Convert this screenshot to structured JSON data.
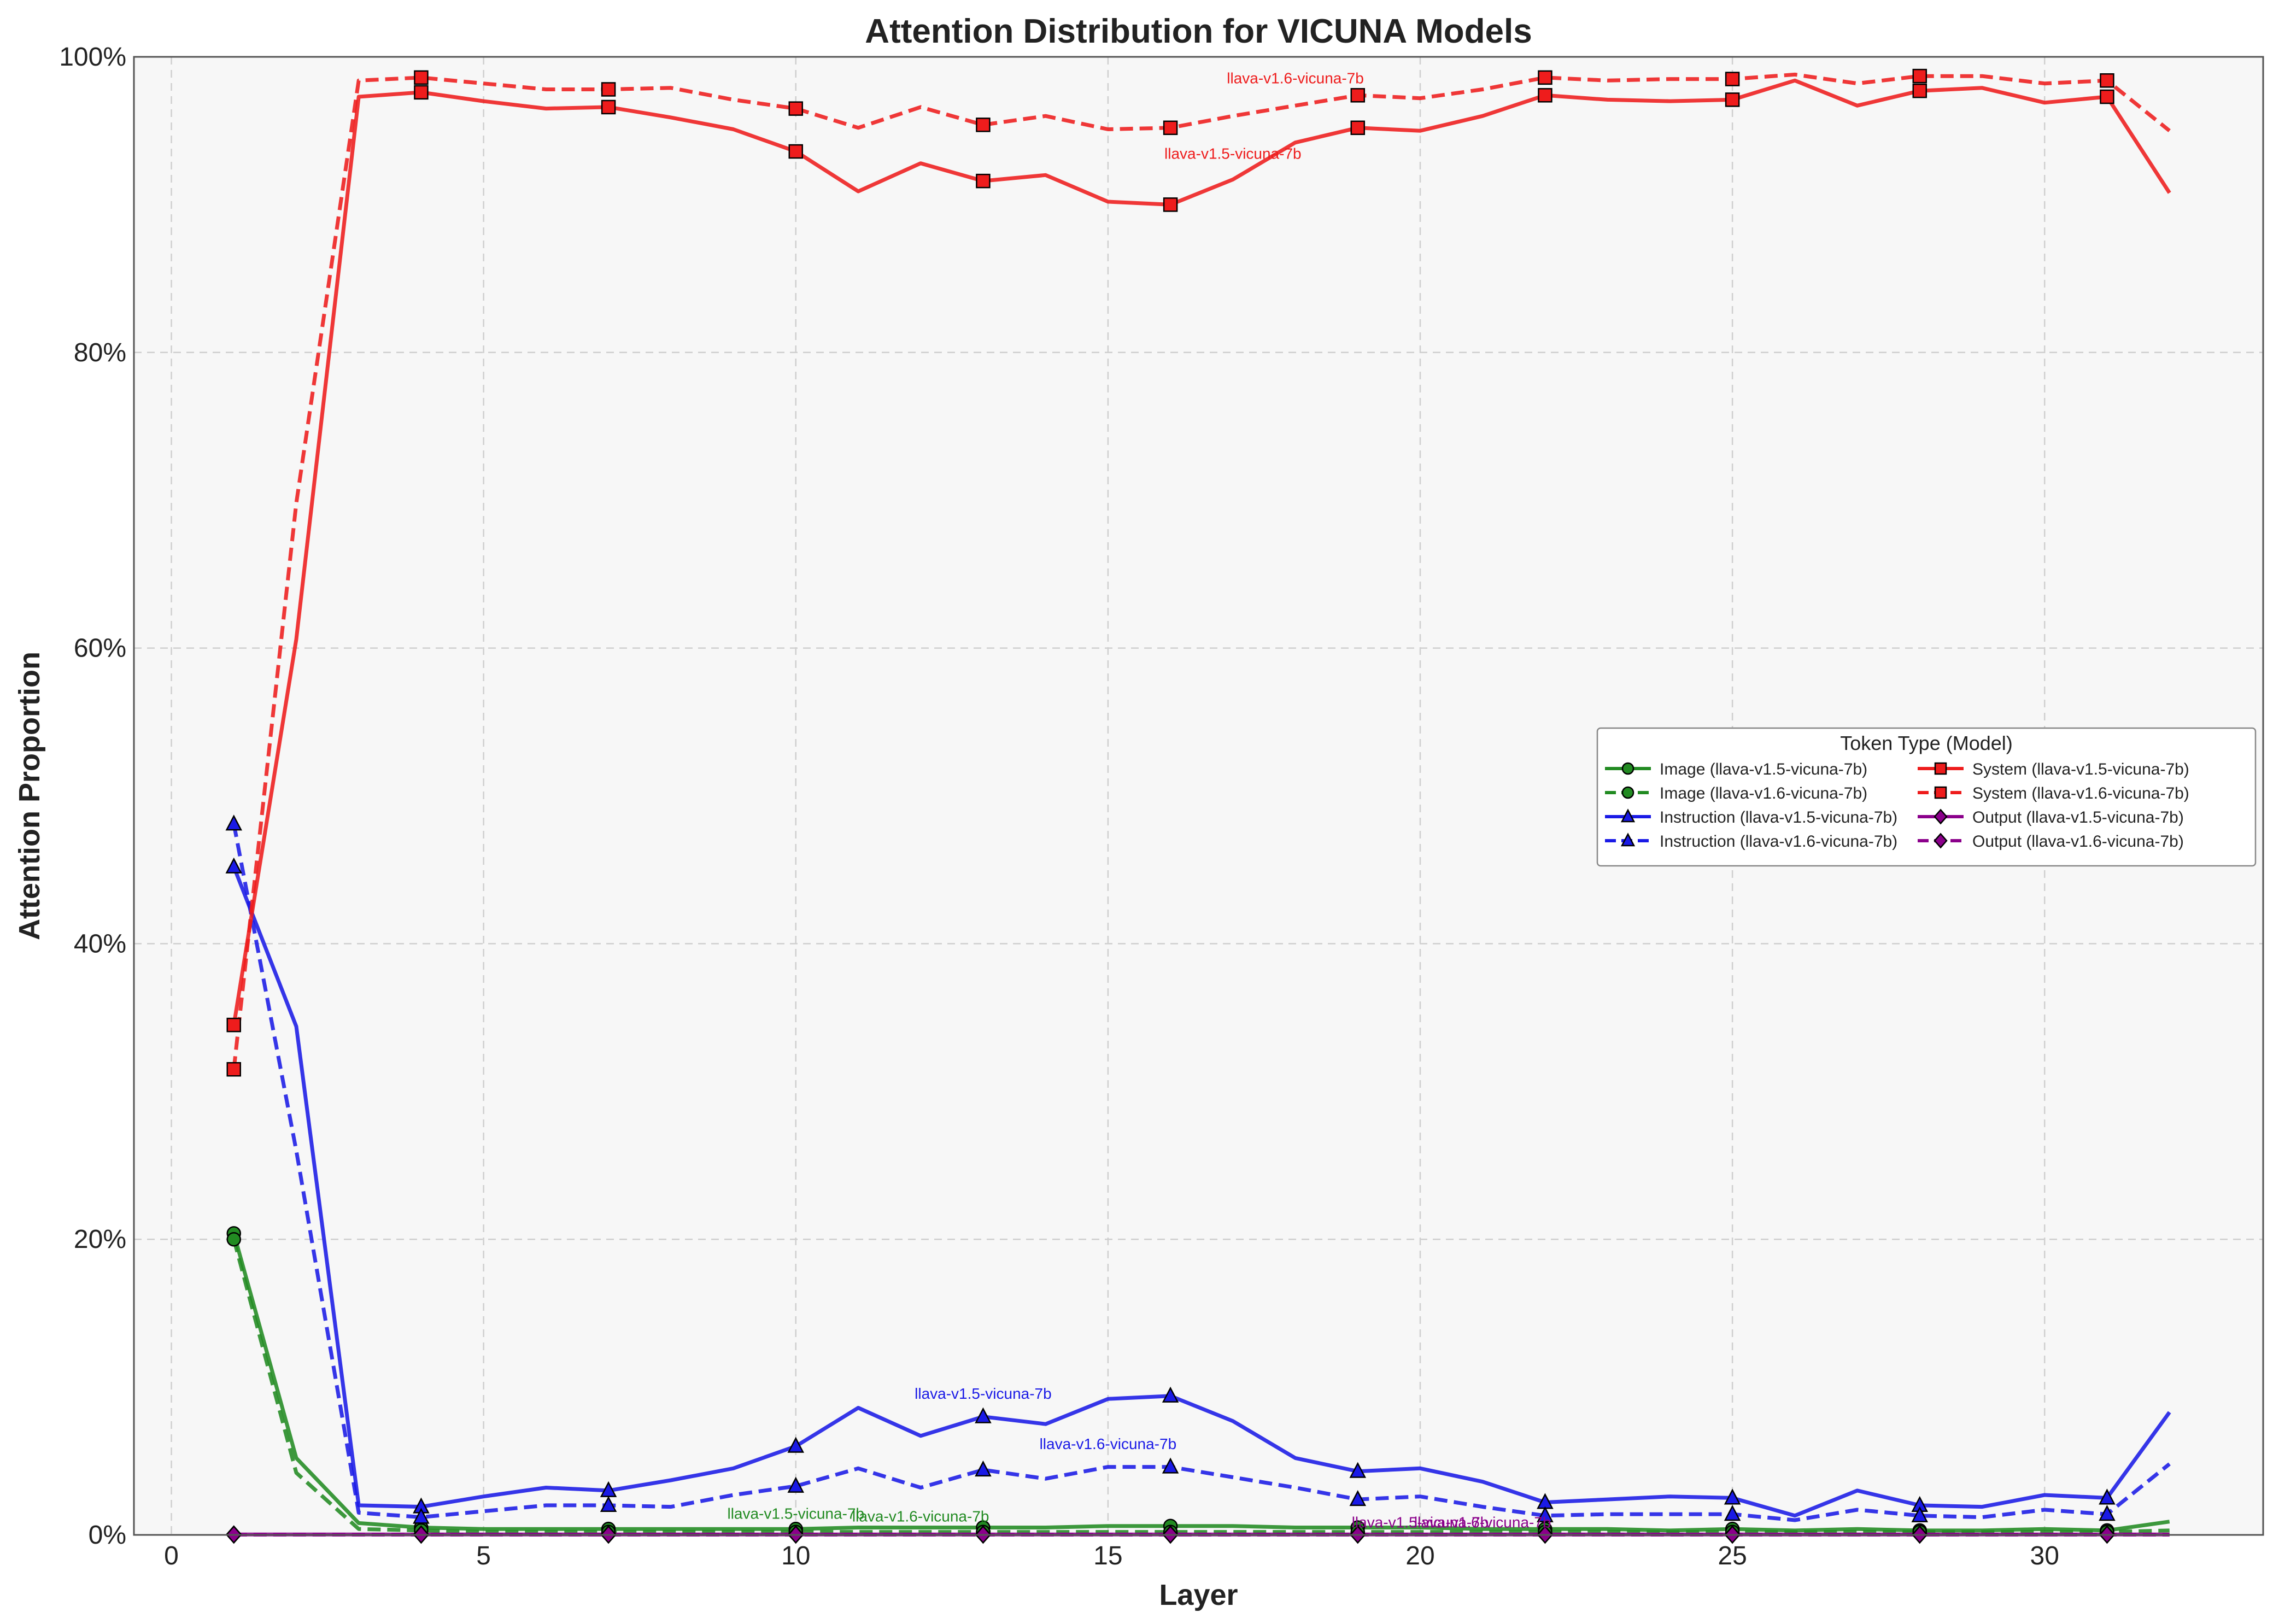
{
  "chart_data": {
    "type": "line",
    "title": "Attention Distribution for VICUNA Models",
    "xlabel": "Layer",
    "ylabel": "Attention Proportion",
    "xlim": [
      -0.6,
      33.5
    ],
    "ylim": [
      0,
      1
    ],
    "xticks": [
      0,
      5,
      10,
      15,
      20,
      25,
      30
    ],
    "xtick_labels": [
      "0",
      "5",
      "10",
      "15",
      "20",
      "25",
      "30"
    ],
    "yticks": [
      0,
      0.2,
      0.4,
      0.6,
      0.8,
      1.0
    ],
    "ytick_labels": [
      "0%",
      "20%",
      "40%",
      "60%",
      "80%",
      "100%"
    ],
    "grid": true,
    "legend": {
      "title": "Token Type (Model)",
      "placement": "center-right",
      "columns": 2
    },
    "x": [
      1,
      2,
      3,
      4,
      5,
      6,
      7,
      8,
      9,
      10,
      11,
      12,
      13,
      14,
      15,
      16,
      17,
      18,
      19,
      20,
      21,
      22,
      23,
      24,
      25,
      26,
      27,
      28,
      29,
      30,
      31,
      32
    ],
    "marker_x": [
      1,
      4,
      7,
      10,
      13,
      16,
      19,
      22,
      25,
      28,
      31
    ],
    "series": [
      {
        "name": "Image (llava-v1.5-vicuna-7b)",
        "color": "#228b22",
        "dash": "solid",
        "marker": "circle",
        "values": [
          0.204,
          0.052,
          0.008,
          0.005,
          0.004,
          0.004,
          0.004,
          0.004,
          0.004,
          0.004,
          0.005,
          0.005,
          0.005,
          0.005,
          0.006,
          0.006,
          0.006,
          0.005,
          0.005,
          0.005,
          0.004,
          0.004,
          0.004,
          0.003,
          0.004,
          0.003,
          0.004,
          0.003,
          0.003,
          0.004,
          0.003,
          0.009
        ]
      },
      {
        "name": "Image (llava-v1.6-vicuna-7b)",
        "color": "#228b22",
        "dash": "dashed",
        "marker": "circle",
        "values": [
          0.2,
          0.042,
          0.004,
          0.003,
          0.002,
          0.002,
          0.002,
          0.002,
          0.002,
          0.002,
          0.002,
          0.002,
          0.002,
          0.002,
          0.002,
          0.002,
          0.002,
          0.002,
          0.002,
          0.002,
          0.002,
          0.002,
          0.002,
          0.002,
          0.002,
          0.002,
          0.002,
          0.002,
          0.002,
          0.002,
          0.002,
          0.003
        ]
      },
      {
        "name": "Instruction (llava-v1.5-vicuna-7b)",
        "color": "#1a1ae6",
        "dash": "solid",
        "marker": "triangle",
        "values": [
          0.452,
          0.344,
          0.02,
          0.019,
          0.026,
          0.032,
          0.03,
          0.037,
          0.045,
          0.06,
          0.086,
          0.067,
          0.08,
          0.075,
          0.092,
          0.094,
          0.077,
          0.052,
          0.043,
          0.045,
          0.036,
          0.022,
          0.024,
          0.026,
          0.025,
          0.013,
          0.03,
          0.02,
          0.019,
          0.027,
          0.025,
          0.083
        ]
      },
      {
        "name": "Instruction (llava-v1.6-vicuna-7b)",
        "color": "#1a1ae6",
        "dash": "dashed",
        "marker": "triangle",
        "values": [
          0.481,
          0.26,
          0.015,
          0.012,
          0.016,
          0.02,
          0.02,
          0.019,
          0.027,
          0.033,
          0.045,
          0.032,
          0.044,
          0.038,
          0.046,
          0.046,
          0.039,
          0.032,
          0.024,
          0.026,
          0.019,
          0.013,
          0.014,
          0.014,
          0.014,
          0.01,
          0.017,
          0.013,
          0.012,
          0.017,
          0.014,
          0.048
        ]
      },
      {
        "name": "System (llava-v1.5-vicuna-7b)",
        "color": "#ee1c1c",
        "dash": "solid",
        "marker": "square",
        "values": [
          0.345,
          0.606,
          0.973,
          0.976,
          0.97,
          0.965,
          0.966,
          0.959,
          0.951,
          0.936,
          0.909,
          0.928,
          0.916,
          0.92,
          0.902,
          0.9,
          0.917,
          0.942,
          0.952,
          0.95,
          0.96,
          0.974,
          0.971,
          0.97,
          0.971,
          0.984,
          0.967,
          0.977,
          0.979,
          0.969,
          0.973,
          0.908
        ]
      },
      {
        "name": "System (llava-v1.6-vicuna-7b)",
        "color": "#ee1c1c",
        "dash": "dashed",
        "marker": "square",
        "values": [
          0.315,
          0.698,
          0.984,
          0.986,
          0.982,
          0.978,
          0.978,
          0.979,
          0.971,
          0.965,
          0.952,
          0.966,
          0.954,
          0.96,
          0.951,
          0.952,
          0.96,
          0.967,
          0.974,
          0.972,
          0.978,
          0.986,
          0.984,
          0.985,
          0.985,
          0.988,
          0.982,
          0.987,
          0.987,
          0.982,
          0.984,
          0.95
        ]
      },
      {
        "name": "Output (llava-v1.5-vicuna-7b)",
        "color": "#8b008b",
        "dash": "solid",
        "marker": "diamond",
        "values": [
          0.0003,
          0.0003,
          0.0003,
          0.0003,
          0.0003,
          0.0003,
          0.0003,
          0.0003,
          0.0003,
          0.0003,
          0.0003,
          0.0003,
          0.0003,
          0.0003,
          0.0003,
          0.0003,
          0.0003,
          0.0003,
          0.0003,
          0.0003,
          0.0003,
          0.0003,
          0.0003,
          0.0003,
          0.0003,
          0.0003,
          0.0003,
          0.0003,
          0.0003,
          0.0003,
          0.0003,
          0.0003
        ]
      },
      {
        "name": "Output (llava-v1.6-vicuna-7b)",
        "color": "#8b008b",
        "dash": "dashed",
        "marker": "diamond",
        "values": [
          0.0002,
          0.0002,
          0.0002,
          0.0002,
          0.0002,
          0.0002,
          0.0002,
          0.0002,
          0.0002,
          0.0002,
          0.0002,
          0.0002,
          0.0002,
          0.0002,
          0.0002,
          0.0002,
          0.0002,
          0.0002,
          0.0002,
          0.0002,
          0.0002,
          0.0002,
          0.0002,
          0.0002,
          0.0002,
          0.0002,
          0.0002,
          0.0002,
          0.0002,
          0.0002,
          0.0002,
          0.0002
        ]
      }
    ],
    "annotations": [
      {
        "text": "llava-v1.6-vicuna-7b",
        "x": 18.0,
        "y": 0.982,
        "color": "#ee1c1c"
      },
      {
        "text": "llava-v1.5-vicuna-7b",
        "x": 17.0,
        "y": 0.931,
        "color": "#ee1c1c"
      },
      {
        "text": "llava-v1.5-vicuna-7b",
        "x": 13.0,
        "y": 0.092,
        "color": "#1a1ae6"
      },
      {
        "text": "llava-v1.6-vicuna-7b",
        "x": 15.0,
        "y": 0.058,
        "color": "#1a1ae6"
      },
      {
        "text": "llava-v1.5-vicuna-7b",
        "x": 10.0,
        "y": 0.011,
        "color": "#228b22"
      },
      {
        "text": "llava-v1.6-vicuna-7b",
        "x": 12.0,
        "y": 0.009,
        "color": "#228b22"
      },
      {
        "text": "llava-v1.5-vicuna-7b",
        "x": 20.0,
        "y": 0.005,
        "color": "#8b008b"
      },
      {
        "text": "llava-v1.6-vicuna-7b",
        "x": 21.0,
        "y": 0.005,
        "color": "#8b008b"
      }
    ]
  }
}
